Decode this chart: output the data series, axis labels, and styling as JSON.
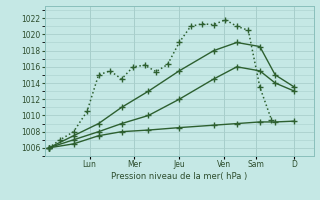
{
  "xlabel": "Pression niveau de la mer( hPa )",
  "background_color": "#c5e8e5",
  "grid_color": "#aacfcc",
  "line_color": "#2d6030",
  "ylim": [
    1005.0,
    1023.5
  ],
  "ytick_values": [
    1006,
    1008,
    1010,
    1012,
    1014,
    1016,
    1018,
    1020,
    1022
  ],
  "xlim": [
    0,
    14
  ],
  "day_labels": [
    "Lun",
    "Mer",
    "Jeu",
    "Ven",
    "Sam",
    "D"
  ],
  "day_positions": [
    2.33,
    4.66,
    6.99,
    9.32,
    11.0,
    13.0
  ],
  "lines": [
    {
      "x": [
        0.2,
        0.8,
        1.5,
        2.2,
        2.8,
        3.4,
        4.0,
        4.6,
        5.2,
        5.8,
        6.4,
        7.0,
        7.6,
        8.2,
        8.8,
        9.4,
        10.0,
        10.6,
        11.2,
        11.8
      ],
      "y": [
        1006,
        1007,
        1008,
        1010.5,
        1015.0,
        1015.5,
        1014.5,
        1016.0,
        1016.2,
        1015.4,
        1016.3,
        1019.0,
        1021.0,
        1021.3,
        1021.2,
        1021.8,
        1021.0,
        1020.5,
        1013.5,
        1009.5
      ],
      "style": "dotted",
      "marker": "+",
      "markersize": 4,
      "linewidth": 1.1
    },
    {
      "x": [
        0.2,
        1.5,
        2.8,
        4.0,
        5.4,
        7.0,
        8.8,
        10.0,
        11.2,
        12.0,
        13.0
      ],
      "y": [
        1006,
        1007.5,
        1009,
        1011,
        1013,
        1015.5,
        1018,
        1019,
        1018.5,
        1015,
        1013.5
      ],
      "style": "-",
      "marker": "+",
      "markersize": 4,
      "linewidth": 1.0
    },
    {
      "x": [
        0.2,
        1.5,
        2.8,
        4.0,
        5.4,
        7.0,
        8.8,
        10.0,
        11.2,
        12.0,
        13.0
      ],
      "y": [
        1006,
        1006.5,
        1007.5,
        1008,
        1008.2,
        1008.5,
        1008.8,
        1009.0,
        1009.2,
        1009.2,
        1009.3
      ],
      "style": "-",
      "marker": "+",
      "markersize": 4,
      "linewidth": 1.0
    },
    {
      "x": [
        0.2,
        1.5,
        2.8,
        4.0,
        5.4,
        7.0,
        8.8,
        10.0,
        11.2,
        12.0,
        13.0
      ],
      "y": [
        1006,
        1007,
        1008,
        1009,
        1010,
        1012,
        1014.5,
        1016,
        1015.5,
        1014,
        1013
      ],
      "style": "-",
      "marker": "+",
      "markersize": 4,
      "linewidth": 1.0
    }
  ]
}
